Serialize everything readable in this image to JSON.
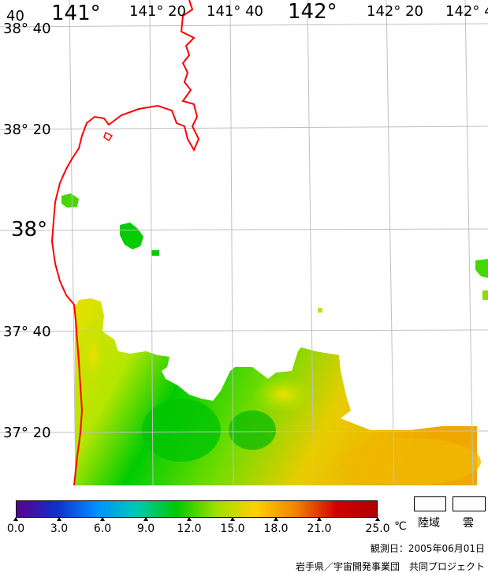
{
  "map": {
    "lon_labels": [
      "141°",
      "141° 20",
      "141° 40",
      "142°",
      "142° 20",
      "142° 4"
    ],
    "lat_labels": [
      "40",
      "38° 40",
      "38° 20",
      "38°",
      "37° 40",
      "37° 20"
    ]
  },
  "legend": {
    "ticks": [
      "0.0",
      "3.0",
      "6.0",
      "9.0",
      "12.0",
      "15.0",
      "18.0",
      "21.0",
      "25.0"
    ],
    "unit": "℃",
    "gradient_colors": [
      "#5a0090",
      "#1030c8",
      "#0090ff",
      "#00c8b4",
      "#00c800",
      "#a0e000",
      "#ffd000",
      "#f08000",
      "#d00000",
      "#b00000"
    ],
    "land_label": "陸域",
    "cloud_label": "雲"
  },
  "colors": {
    "coastline": "#ff0000",
    "grid": "#c0c0c0",
    "sea_warm": "#f0c000",
    "sea_mid": "#00c800"
  },
  "obs_date": "観測日：2005年06月01日",
  "credit": "岩手県／宇宙開発事業団　共同プロジェクト"
}
